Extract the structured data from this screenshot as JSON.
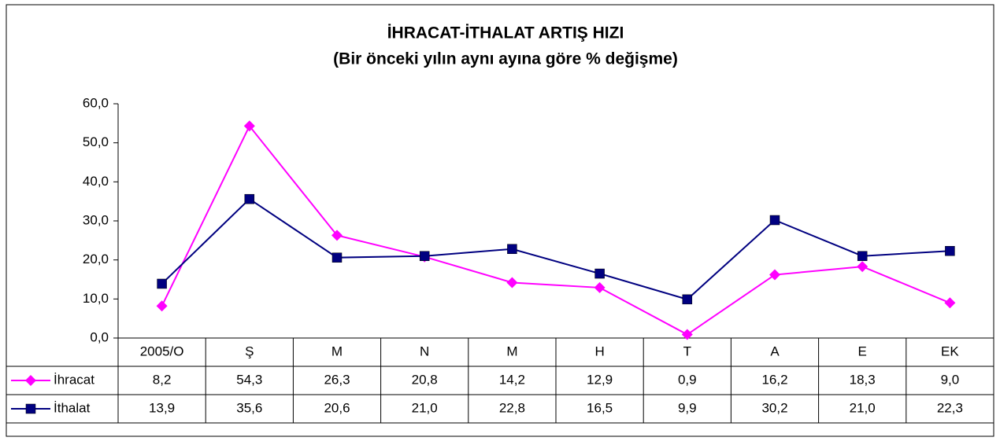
{
  "chart_data": {
    "type": "line",
    "title": "İHRACAT-İTHALAT ARTIŞ HIZI",
    "subtitle": "(Bir önceki yılın aynı ayına göre % değişme)",
    "categories": [
      "2005/O",
      "Ş",
      "M",
      "N",
      "M",
      "H",
      "T",
      "A",
      "E",
      "EK"
    ],
    "series": [
      {
        "name": "İhracat",
        "color": "#ff00ff",
        "marker": "diamond",
        "values": [
          8.2,
          54.3,
          26.3,
          20.8,
          14.2,
          12.9,
          0.9,
          16.2,
          18.3,
          9.0
        ],
        "value_labels": [
          "8,2",
          "54,3",
          "26,3",
          "20,8",
          "14,2",
          "12,9",
          "0,9",
          "16,2",
          "18,3",
          "9,0"
        ]
      },
      {
        "name": "İthalat",
        "color": "#000080",
        "marker": "square",
        "values": [
          13.9,
          35.6,
          20.6,
          21.0,
          22.8,
          16.5,
          9.9,
          30.2,
          21.0,
          22.3
        ],
        "value_labels": [
          "13,9",
          "35,6",
          "20,6",
          "21,0",
          "22,8",
          "16,5",
          "9,9",
          "30,2",
          "21,0",
          "22,3"
        ]
      }
    ],
    "ylim": [
      0,
      60
    ],
    "yticks": [
      {
        "value": 0,
        "label": "0,0"
      },
      {
        "value": 10,
        "label": "10,0"
      },
      {
        "value": 20,
        "label": "20,0"
      },
      {
        "value": 30,
        "label": "30,0"
      },
      {
        "value": 40,
        "label": "40,0"
      },
      {
        "value": 50,
        "label": "50,0"
      },
      {
        "value": 60,
        "label": "60,0"
      }
    ],
    "grid": false
  }
}
